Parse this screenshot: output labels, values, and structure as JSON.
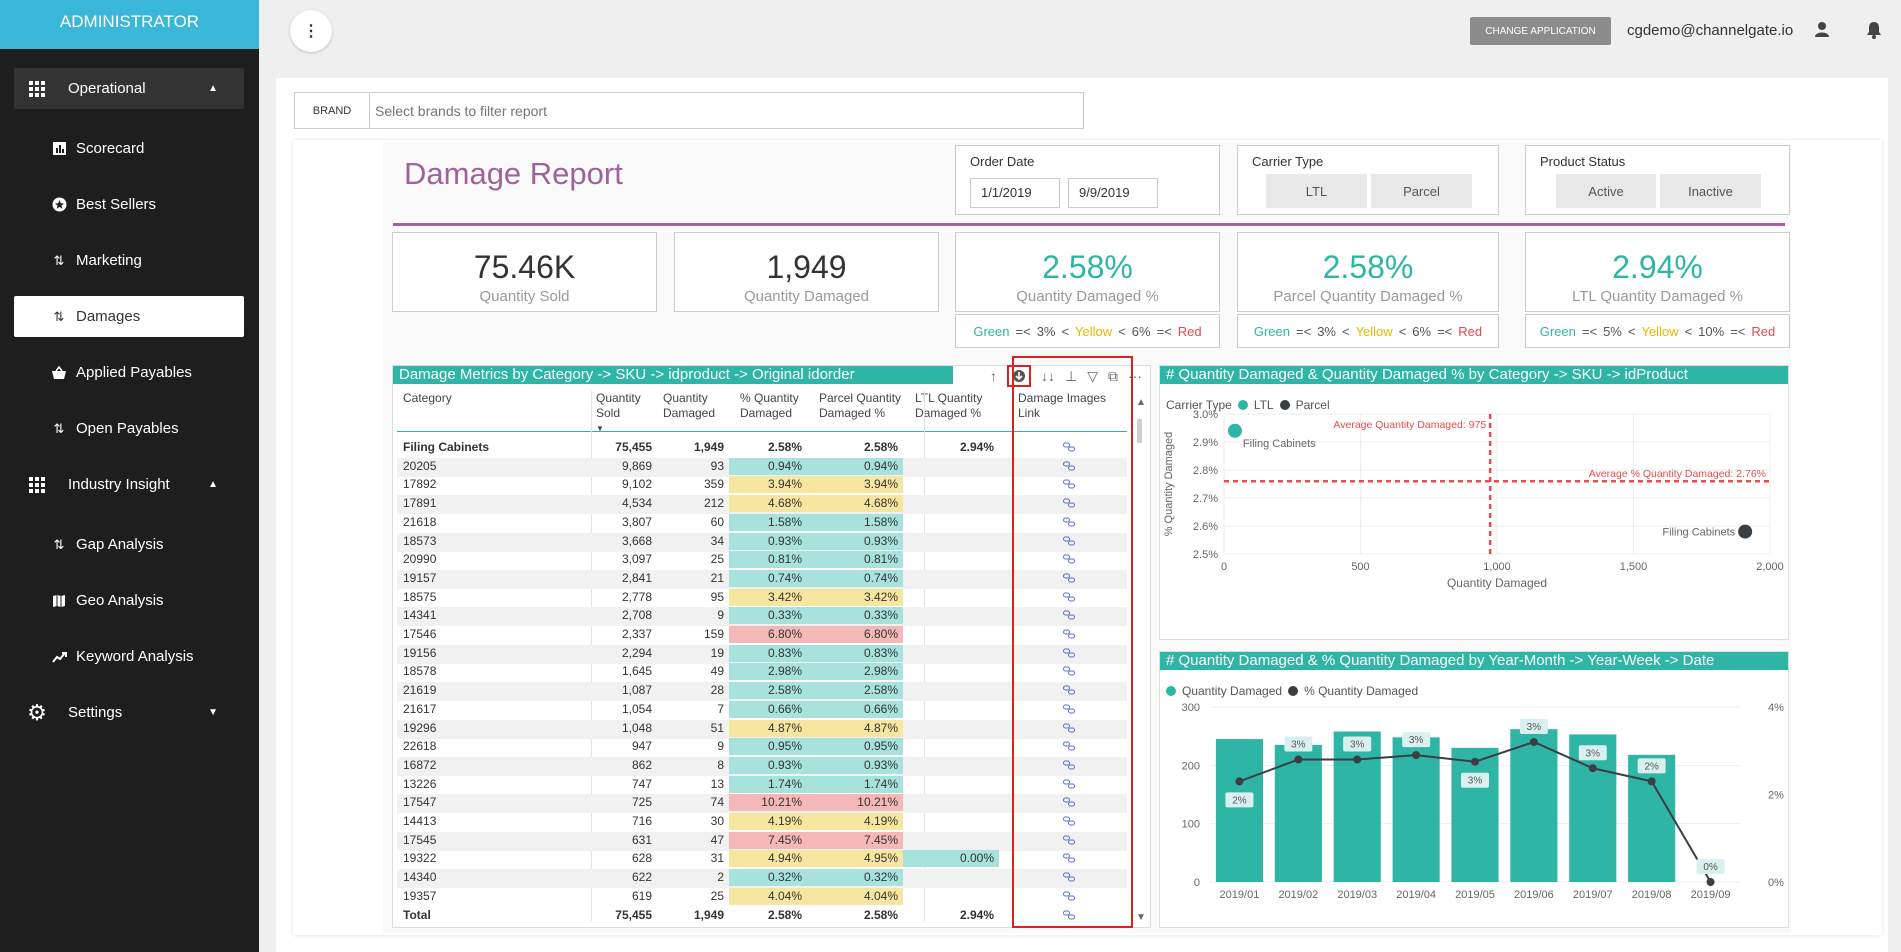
{
  "sidebar": {
    "header": "ADMINISTRATOR",
    "items": [
      {
        "label": "Operational"
      },
      {
        "label": "Scorecard"
      },
      {
        "label": "Best Sellers"
      },
      {
        "label": "Marketing"
      },
      {
        "label": "Damages"
      },
      {
        "label": "Applied Payables"
      },
      {
        "label": "Open Payables"
      },
      {
        "label": "Industry Insight"
      },
      {
        "label": "Gap Analysis"
      },
      {
        "label": "Geo Analysis"
      },
      {
        "label": "Keyword Analysis"
      },
      {
        "label": "Settings"
      }
    ]
  },
  "topbar": {
    "change_app": "CHANGE APPLICATION",
    "email": "cgdemo@channelgate.io",
    "kebab": "⋮"
  },
  "filter": {
    "brand_label": "BRAND",
    "placeholder": "Select brands to filter report"
  },
  "report": {
    "title": "Damage Report",
    "order_date": {
      "title": "Order Date",
      "from": "1/1/2019",
      "to": "9/9/2019"
    },
    "carrier": {
      "title": "Carrier Type",
      "options": [
        "LTL",
        "Parcel"
      ]
    },
    "status": {
      "title": "Product Status",
      "options": [
        "Active",
        "Inactive"
      ]
    },
    "kpis": [
      {
        "value": "75.46K",
        "label": "Quantity Sold"
      },
      {
        "value": "1,949",
        "label": "Quantity Damaged"
      },
      {
        "value": "2.58%",
        "label": "Quantity Damaged %"
      },
      {
        "value": "2.58%",
        "label": "Parcel Quantity Damaged %"
      },
      {
        "value": "2.94%",
        "label": "LTL Quantity Damaged %"
      }
    ],
    "thresholds": [
      {
        "green": "Green",
        "op1": "=<",
        "v1": "3%",
        "op2": "<",
        "yellow": "Yellow",
        "op3": "<",
        "v2": "6%",
        "op4": "=<",
        "red": "Red"
      },
      {
        "green": "Green",
        "op1": "=<",
        "v1": "3%",
        "op2": "<",
        "yellow": "Yellow",
        "op3": "<",
        "v2": "6%",
        "op4": "=<",
        "red": "Red"
      },
      {
        "green": "Green",
        "op1": "=<",
        "v1": "5%",
        "op2": "<",
        "yellow": "Yellow",
        "op3": "<",
        "v2": "10%",
        "op4": "=<",
        "red": "Red"
      }
    ]
  },
  "table": {
    "title": "Damage Metrics by Category -> SKU -> idproduct -> Original idorder",
    "tools": {
      "up": "↑",
      "dd": "↓↓",
      "expand": "⊥",
      "filter": "▽",
      "focus": "⧉",
      "more": "···"
    },
    "headers": [
      "Category",
      "Quantity Sold",
      "Quantity Damaged",
      "% Quantity Damaged",
      "Parcel Quantity Damaged %",
      "LTL Quantity Damaged %",
      "Damage Images Link"
    ],
    "rows": [
      {
        "cat": "Filing Cabinets",
        "sold": "75,455",
        "dmg": "1,949",
        "pct": "2.58%",
        "parcel": "2.58%",
        "ltl": "2.94%",
        "c": "",
        "bold": true
      },
      {
        "cat": "20205",
        "sold": "9,869",
        "dmg": "93",
        "pct": "0.94%",
        "parcel": "0.94%",
        "ltl": "",
        "c": "g"
      },
      {
        "cat": "17892",
        "sold": "9,102",
        "dmg": "359",
        "pct": "3.94%",
        "parcel": "3.94%",
        "ltl": "",
        "c": "y"
      },
      {
        "cat": "17891",
        "sold": "4,534",
        "dmg": "212",
        "pct": "4.68%",
        "parcel": "4.68%",
        "ltl": "",
        "c": "y"
      },
      {
        "cat": "21618",
        "sold": "3,807",
        "dmg": "60",
        "pct": "1.58%",
        "parcel": "1.58%",
        "ltl": "",
        "c": "g"
      },
      {
        "cat": "18573",
        "sold": "3,668",
        "dmg": "34",
        "pct": "0.93%",
        "parcel": "0.93%",
        "ltl": "",
        "c": "g"
      },
      {
        "cat": "20990",
        "sold": "3,097",
        "dmg": "25",
        "pct": "0.81%",
        "parcel": "0.81%",
        "ltl": "",
        "c": "g"
      },
      {
        "cat": "19157",
        "sold": "2,841",
        "dmg": "21",
        "pct": "0.74%",
        "parcel": "0.74%",
        "ltl": "",
        "c": "g"
      },
      {
        "cat": "18575",
        "sold": "2,778",
        "dmg": "95",
        "pct": "3.42%",
        "parcel": "3.42%",
        "ltl": "",
        "c": "y"
      },
      {
        "cat": "14341",
        "sold": "2,708",
        "dmg": "9",
        "pct": "0.33%",
        "parcel": "0.33%",
        "ltl": "",
        "c": "g"
      },
      {
        "cat": "17546",
        "sold": "2,337",
        "dmg": "159",
        "pct": "6.80%",
        "parcel": "6.80%",
        "ltl": "",
        "c": "r"
      },
      {
        "cat": "19156",
        "sold": "2,294",
        "dmg": "19",
        "pct": "0.83%",
        "parcel": "0.83%",
        "ltl": "",
        "c": "g"
      },
      {
        "cat": "18578",
        "sold": "1,645",
        "dmg": "49",
        "pct": "2.98%",
        "parcel": "2.98%",
        "ltl": "",
        "c": "g"
      },
      {
        "cat": "21619",
        "sold": "1,087",
        "dmg": "28",
        "pct": "2.58%",
        "parcel": "2.58%",
        "ltl": "",
        "c": "g"
      },
      {
        "cat": "21617",
        "sold": "1,054",
        "dmg": "7",
        "pct": "0.66%",
        "parcel": "0.66%",
        "ltl": "",
        "c": "g"
      },
      {
        "cat": "19296",
        "sold": "1,048",
        "dmg": "51",
        "pct": "4.87%",
        "parcel": "4.87%",
        "ltl": "",
        "c": "y"
      },
      {
        "cat": "22618",
        "sold": "947",
        "dmg": "9",
        "pct": "0.95%",
        "parcel": "0.95%",
        "ltl": "",
        "c": "g"
      },
      {
        "cat": "16872",
        "sold": "862",
        "dmg": "8",
        "pct": "0.93%",
        "parcel": "0.93%",
        "ltl": "",
        "c": "g"
      },
      {
        "cat": "13226",
        "sold": "747",
        "dmg": "13",
        "pct": "1.74%",
        "parcel": "1.74%",
        "ltl": "",
        "c": "g"
      },
      {
        "cat": "17547",
        "sold": "725",
        "dmg": "74",
        "pct": "10.21%",
        "parcel": "10.21%",
        "ltl": "",
        "c": "r"
      },
      {
        "cat": "14413",
        "sold": "716",
        "dmg": "30",
        "pct": "4.19%",
        "parcel": "4.19%",
        "ltl": "",
        "c": "y"
      },
      {
        "cat": "17545",
        "sold": "631",
        "dmg": "47",
        "pct": "7.45%",
        "parcel": "7.45%",
        "ltl": "",
        "c": "r"
      },
      {
        "cat": "19322",
        "sold": "628",
        "dmg": "31",
        "pct": "4.94%",
        "parcel": "4.95%",
        "ltl": "0.00%",
        "c": "y"
      },
      {
        "cat": "14340",
        "sold": "622",
        "dmg": "2",
        "pct": "0.32%",
        "parcel": "0.32%",
        "ltl": "",
        "c": "g"
      },
      {
        "cat": "19357",
        "sold": "619",
        "dmg": "25",
        "pct": "4.04%",
        "parcel": "4.04%",
        "ltl": "",
        "c": "y"
      }
    ],
    "total": {
      "cat": "Total",
      "sold": "75,455",
      "dmg": "1,949",
      "pct": "2.58%",
      "parcel": "2.58%",
      "ltl": "2.94%"
    }
  },
  "chart_data": [
    {
      "type": "scatter",
      "title": "# Quantity Damaged & Quantity Damaged % by Category -> SKU -> idProduct",
      "legend_title": "Carrier Type",
      "series": [
        {
          "name": "LTL",
          "color": "#2fb5a5",
          "points": [
            {
              "x": 40,
              "y": 2.94,
              "label": "Filing Cabinets"
            }
          ]
        },
        {
          "name": "Parcel",
          "color": "#3a3f44",
          "points": [
            {
              "x": 1909,
              "y": 2.58,
              "label": "Filing Cabinets"
            }
          ]
        }
      ],
      "xlabel": "Quantity Damaged",
      "ylabel": "% Quantity Damaged",
      "xlim": [
        0,
        2000
      ],
      "ylim": [
        2.5,
        3.0
      ],
      "xticks": [
        "0",
        "500",
        "1,000",
        "1,500",
        "2,000"
      ],
      "yticks": [
        "2.5%",
        "2.6%",
        "2.7%",
        "2.8%",
        "2.9%",
        "3.0%"
      ],
      "reference_lines": [
        {
          "axis": "x",
          "value": 975,
          "label": "Average Quantity Damaged: 975"
        },
        {
          "axis": "y",
          "value": 2.76,
          "label": "Average % Quantity Damaged: 2.76%"
        }
      ]
    },
    {
      "type": "bar",
      "title": "# Quantity Damaged & % Quantity Damaged by Year-Month -> Year-Week -> Date",
      "categories": [
        "2019/01",
        "2019/02",
        "2019/03",
        "2019/04",
        "2019/05",
        "2019/06",
        "2019/07",
        "2019/08",
        "2019/09"
      ],
      "series": [
        {
          "name": "Quantity Damaged",
          "color": "#2fb5a5",
          "type": "bar",
          "values": [
            245,
            235,
            258,
            248,
            230,
            262,
            253,
            218,
            0
          ]
        },
        {
          "name": "% Quantity Damaged",
          "color": "#3a3f44",
          "type": "line",
          "values": [
            2.3,
            2.8,
            2.8,
            2.9,
            2.75,
            3.2,
            2.6,
            2.3,
            0
          ]
        }
      ],
      "line_labels": [
        "2%",
        "3%",
        "3%",
        "3%",
        "3%",
        "3%",
        "3%",
        "2%",
        "0%"
      ],
      "ylim": [
        0,
        300
      ],
      "y2lim": [
        0,
        4
      ],
      "yticks": [
        "0",
        "100",
        "200",
        "300"
      ],
      "y2ticks": [
        "0%",
        "2%",
        "4%"
      ]
    }
  ]
}
